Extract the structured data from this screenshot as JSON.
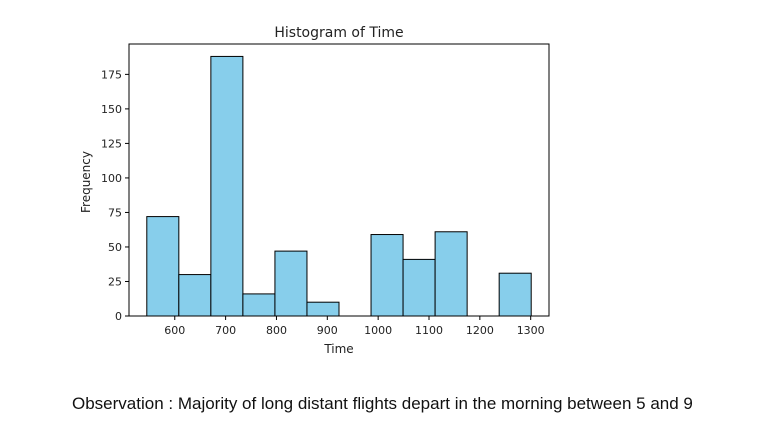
{
  "chart_data": {
    "type": "bar",
    "title": "Histogram of Time",
    "xlabel": "Time",
    "ylabel": "Frequency",
    "bar_color": "#87CEEB",
    "edge_color": "#000000",
    "grid": false,
    "bins": [
      {
        "start": 545,
        "end": 608,
        "value": 72
      },
      {
        "start": 608,
        "end": 671,
        "value": 30
      },
      {
        "start": 671,
        "end": 734,
        "value": 188
      },
      {
        "start": 734,
        "end": 797,
        "value": 16
      },
      {
        "start": 797,
        "end": 860,
        "value": 47
      },
      {
        "start": 860,
        "end": 923,
        "value": 10
      },
      {
        "start": 923,
        "end": 986,
        "value": 0
      },
      {
        "start": 986,
        "end": 1049,
        "value": 59
      },
      {
        "start": 1049,
        "end": 1112,
        "value": 41
      },
      {
        "start": 1112,
        "end": 1175,
        "value": 61
      },
      {
        "start": 1175,
        "end": 1238,
        "value": 0
      },
      {
        "start": 1238,
        "end": 1301,
        "value": 31
      }
    ],
    "xlim": [
      510,
      1336
    ],
    "ylim": [
      0,
      197
    ],
    "xticks": [
      600,
      700,
      800,
      900,
      1000,
      1100,
      1200,
      1300
    ],
    "yticks": [
      0,
      25,
      50,
      75,
      100,
      125,
      150,
      175
    ]
  },
  "observation": "Observation : Majority of long distant flights depart in the morning between 5 and 9"
}
